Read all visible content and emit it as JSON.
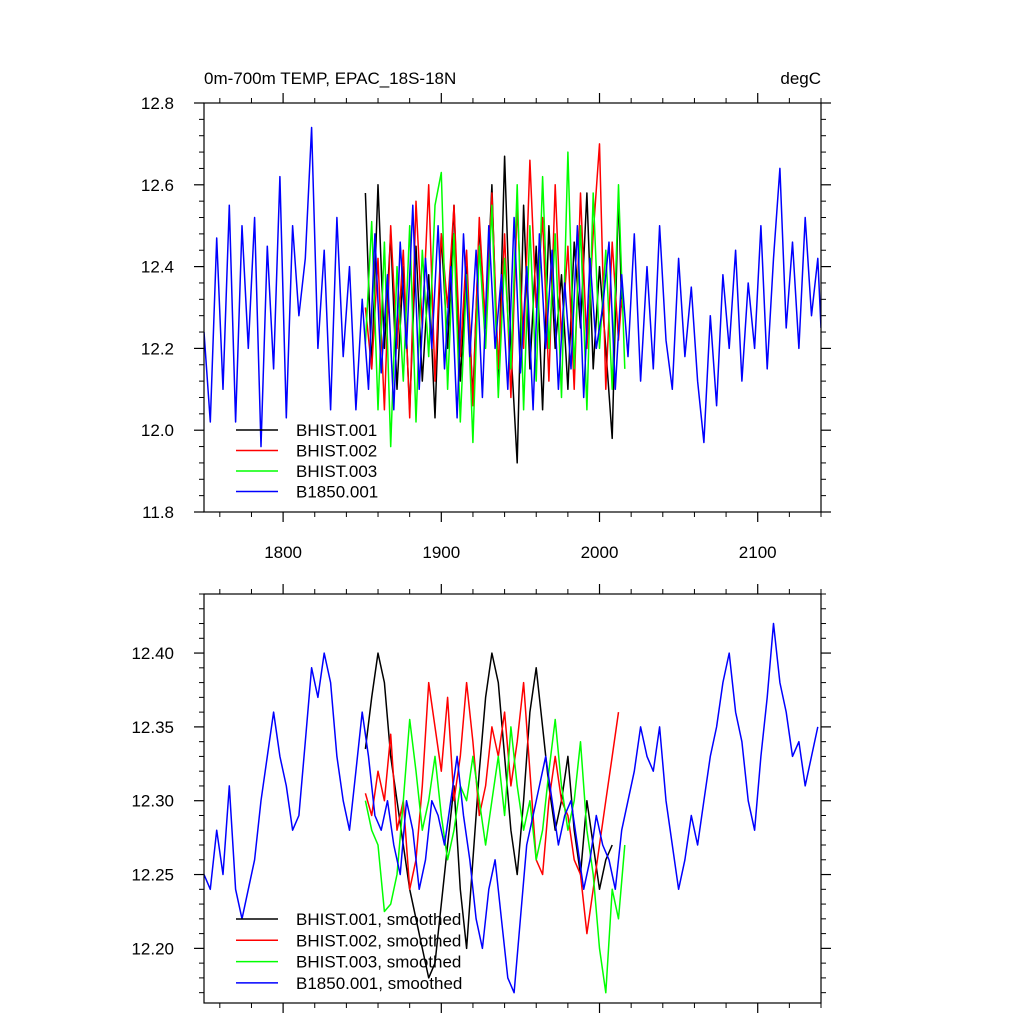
{
  "chart_data": [
    {
      "type": "line",
      "title": "0m-700m TEMP, EPAC_18S-18N",
      "units": "degC",
      "xlabel": "",
      "ylabel": "",
      "xlim": [
        1750,
        2140
      ],
      "ylim": [
        11.8,
        12.8
      ],
      "x_ticks": [
        1800,
        1900,
        2000,
        2100
      ],
      "x_tick_labels": [
        "1800",
        "1900",
        "2000",
        "2100"
      ],
      "y_ticks": [
        11.8,
        12.0,
        12.2,
        12.4,
        12.6,
        12.8
      ],
      "y_tick_labels": [
        "11.8",
        "12.0",
        "12.2",
        "12.4",
        "12.6",
        "12.8"
      ],
      "legend_position": "bottom-left",
      "series": [
        {
          "name": "BHIST.001",
          "color": "#000000",
          "x": [
            1852,
            1856,
            1860,
            1864,
            1868,
            1872,
            1876,
            1880,
            1884,
            1888,
            1892,
            1896,
            1900,
            1904,
            1908,
            1912,
            1916,
            1920,
            1924,
            1928,
            1932,
            1936,
            1940,
            1944,
            1948,
            1952,
            1956,
            1960,
            1964,
            1968,
            1972,
            1976,
            1980,
            1984,
            1988,
            1992,
            1996,
            2000,
            2004,
            2008,
            2012,
            2014
          ],
          "values": [
            12.58,
            12.15,
            12.6,
            12.2,
            12.48,
            12.1,
            12.4,
            12.05,
            12.45,
            12.12,
            12.38,
            12.03,
            12.48,
            12.2,
            12.55,
            12.12,
            12.4,
            12.08,
            12.5,
            12.25,
            12.6,
            12.1,
            12.67,
            12.2,
            11.92,
            12.55,
            12.15,
            12.45,
            12.05,
            12.5,
            12.2,
            12.38,
            12.1,
            12.46,
            12.25,
            12.58,
            12.15,
            12.4,
            12.2,
            11.98,
            12.58,
            12.3
          ]
        },
        {
          "name": "BHIST.002",
          "color": "#ff0000",
          "x": [
            1852,
            1856,
            1860,
            1864,
            1868,
            1872,
            1876,
            1880,
            1884,
            1888,
            1892,
            1896,
            1900,
            1904,
            1908,
            1912,
            1916,
            1920,
            1924,
            1928,
            1932,
            1936,
            1940,
            1944,
            1948,
            1952,
            1956,
            1960,
            1964,
            1968,
            1972,
            1976,
            1980,
            1984,
            1988,
            1992,
            1996,
            2000,
            2004,
            2008,
            2012,
            2014
          ],
          "values": [
            12.3,
            12.15,
            12.42,
            12.05,
            12.5,
            12.2,
            12.44,
            12.03,
            12.56,
            12.25,
            12.6,
            12.12,
            12.48,
            12.3,
            12.55,
            12.18,
            12.44,
            12.06,
            12.52,
            12.25,
            12.58,
            12.15,
            12.48,
            12.08,
            12.55,
            12.2,
            12.66,
            12.3,
            12.52,
            12.12,
            12.6,
            12.22,
            12.45,
            12.1,
            12.58,
            12.2,
            12.48,
            12.7,
            12.1,
            12.46,
            12.22,
            12.32
          ]
        },
        {
          "name": "BHIST.003",
          "color": "#00ff00",
          "x": [
            1852,
            1856,
            1860,
            1864,
            1868,
            1872,
            1876,
            1880,
            1884,
            1888,
            1892,
            1896,
            1900,
            1904,
            1908,
            1912,
            1916,
            1920,
            1924,
            1928,
            1932,
            1936,
            1940,
            1944,
            1948,
            1952,
            1956,
            1960,
            1964,
            1968,
            1972,
            1976,
            1980,
            1984,
            1988,
            1992,
            1996,
            2000,
            2004,
            2008,
            2012,
            2016
          ],
          "values": [
            12.21,
            12.51,
            12.05,
            12.46,
            11.96,
            12.4,
            12.12,
            12.5,
            12.02,
            12.44,
            12.18,
            12.55,
            12.63,
            12.1,
            12.48,
            12.02,
            12.38,
            11.97,
            12.45,
            12.2,
            12.55,
            12.08,
            12.42,
            12.15,
            12.6,
            12.05,
            12.5,
            12.12,
            12.62,
            12.2,
            12.48,
            12.08,
            12.68,
            12.15,
            12.5,
            12.05,
            12.58,
            12.2,
            12.44,
            12.1,
            12.6,
            12.15
          ]
        },
        {
          "name": "B1850.001",
          "color": "#0000ff",
          "x": [
            1750,
            1754,
            1758,
            1762,
            1766,
            1770,
            1774,
            1778,
            1782,
            1786,
            1790,
            1794,
            1798,
            1802,
            1806,
            1810,
            1814,
            1818,
            1822,
            1826,
            1830,
            1834,
            1838,
            1842,
            1846,
            1850,
            1854,
            1858,
            1862,
            1866,
            1870,
            1874,
            1878,
            1882,
            1886,
            1890,
            1894,
            1898,
            1902,
            1906,
            1910,
            1914,
            1918,
            1922,
            1926,
            1930,
            1934,
            1938,
            1942,
            1946,
            1950,
            1954,
            1958,
            1962,
            1966,
            1970,
            1974,
            1978,
            1982,
            1986,
            1990,
            1994,
            1998,
            2002,
            2006,
            2010,
            2014,
            2018,
            2022,
            2026,
            2030,
            2034,
            2038,
            2042,
            2046,
            2050,
            2054,
            2058,
            2062,
            2066,
            2070,
            2074,
            2078,
            2082,
            2086,
            2090,
            2094,
            2098,
            2102,
            2106,
            2110,
            2114,
            2118,
            2122,
            2126,
            2130,
            2134,
            2138,
            2140
          ],
          "values": [
            12.24,
            12.02,
            12.47,
            12.1,
            12.55,
            12.02,
            12.5,
            12.2,
            12.52,
            11.96,
            12.45,
            12.15,
            12.62,
            12.03,
            12.5,
            12.28,
            12.42,
            12.74,
            12.2,
            12.44,
            12.05,
            12.52,
            12.18,
            12.4,
            12.05,
            12.32,
            12.1,
            12.48,
            12.14,
            12.38,
            12.05,
            12.46,
            12.2,
            12.55,
            12.1,
            12.42,
            12.2,
            12.5,
            12.15,
            12.4,
            12.03,
            12.48,
            12.18,
            12.44,
            12.08,
            12.5,
            12.2,
            12.38,
            12.1,
            12.52,
            12.14,
            12.4,
            12.05,
            12.48,
            12.2,
            12.44,
            12.1,
            12.36,
            12.15,
            12.5,
            12.08,
            12.42,
            12.2,
            12.3,
            12.46,
            12.1,
            12.38,
            12.18,
            12.48,
            12.12,
            12.4,
            12.15,
            12.5,
            12.22,
            12.1,
            12.42,
            12.18,
            12.35,
            12.12,
            11.97,
            12.28,
            12.06,
            12.38,
            12.2,
            12.44,
            12.12,
            12.36,
            12.2,
            12.5,
            12.15,
            12.42,
            12.64,
            12.25,
            12.46,
            12.2,
            12.52,
            12.28,
            12.42,
            12.25
          ]
        }
      ]
    },
    {
      "type": "line",
      "title": "",
      "units": "",
      "xlabel": "",
      "ylabel": "",
      "xlim": [
        1750,
        2140
      ],
      "ylim": [
        12.163,
        12.44
      ],
      "x_ticks": [
        1800,
        1900,
        2000,
        2100
      ],
      "x_tick_labels": [],
      "y_ticks": [
        12.2,
        12.25,
        12.3,
        12.35,
        12.4
      ],
      "y_tick_labels": [
        "12.20",
        "12.25",
        "12.30",
        "12.35",
        "12.40"
      ],
      "legend_position": "bottom-left",
      "series": [
        {
          "name": "BHIST.001, smoothed",
          "color": "#000000",
          "x": [
            1852,
            1856,
            1860,
            1864,
            1868,
            1872,
            1876,
            1880,
            1884,
            1888,
            1892,
            1896,
            1900,
            1904,
            1908,
            1912,
            1916,
            1920,
            1924,
            1928,
            1932,
            1936,
            1940,
            1944,
            1948,
            1952,
            1956,
            1960,
            1964,
            1968,
            1972,
            1976,
            1980,
            1984,
            1988,
            1992,
            1996,
            2000,
            2004,
            2008
          ],
          "values": [
            12.335,
            12.37,
            12.4,
            12.38,
            12.33,
            12.3,
            12.27,
            12.24,
            12.22,
            12.2,
            12.18,
            12.19,
            12.23,
            12.27,
            12.31,
            12.24,
            12.2,
            12.26,
            12.32,
            12.37,
            12.4,
            12.38,
            12.33,
            12.28,
            12.25,
            12.3,
            12.36,
            12.39,
            12.35,
            12.31,
            12.28,
            12.3,
            12.33,
            12.28,
            12.25,
            12.3,
            12.27,
            12.24,
            12.26,
            12.27
          ]
        },
        {
          "name": "BHIST.002, smoothed",
          "color": "#ff0000",
          "x": [
            1852,
            1856,
            1860,
            1864,
            1868,
            1872,
            1876,
            1880,
            1884,
            1888,
            1892,
            1896,
            1900,
            1904,
            1908,
            1912,
            1916,
            1920,
            1924,
            1928,
            1932,
            1936,
            1940,
            1944,
            1948,
            1952,
            1956,
            1960,
            1964,
            1968,
            1972,
            1976,
            1980,
            1984,
            1988,
            1992,
            1996,
            2000,
            2004,
            2008,
            2012
          ],
          "values": [
            12.305,
            12.29,
            12.32,
            12.3,
            12.345,
            12.28,
            12.3,
            12.24,
            12.26,
            12.31,
            12.38,
            12.35,
            12.32,
            12.37,
            12.3,
            12.33,
            12.38,
            12.34,
            12.29,
            12.31,
            12.35,
            12.33,
            12.36,
            12.31,
            12.34,
            12.38,
            12.32,
            12.26,
            12.25,
            12.3,
            12.33,
            12.3,
            12.29,
            12.26,
            12.25,
            12.21,
            12.24,
            12.27,
            12.3,
            12.33,
            12.36
          ]
        },
        {
          "name": "BHIST.003, smoothed",
          "color": "#00ff00",
          "x": [
            1852,
            1856,
            1860,
            1864,
            1868,
            1872,
            1876,
            1880,
            1884,
            1888,
            1892,
            1896,
            1900,
            1904,
            1908,
            1912,
            1916,
            1920,
            1924,
            1928,
            1932,
            1936,
            1940,
            1944,
            1948,
            1952,
            1956,
            1960,
            1964,
            1968,
            1972,
            1976,
            1980,
            1984,
            1988,
            1992,
            1996,
            2000,
            2004,
            2008,
            2012,
            2016
          ],
          "values": [
            12.3,
            12.28,
            12.27,
            12.225,
            12.23,
            12.25,
            12.3,
            12.355,
            12.32,
            12.28,
            12.3,
            12.33,
            12.29,
            12.26,
            12.28,
            12.31,
            12.3,
            12.33,
            12.3,
            12.27,
            12.3,
            12.33,
            12.29,
            12.35,
            12.31,
            12.28,
            12.3,
            12.26,
            12.28,
            12.32,
            12.355,
            12.31,
            12.28,
            12.3,
            12.34,
            12.28,
            12.25,
            12.2,
            12.17,
            12.24,
            12.22,
            12.27
          ]
        },
        {
          "name": "B1850.001, smoothed",
          "color": "#0000ff",
          "x": [
            1750,
            1754,
            1758,
            1762,
            1766,
            1770,
            1774,
            1778,
            1782,
            1786,
            1790,
            1794,
            1798,
            1802,
            1806,
            1810,
            1814,
            1818,
            1822,
            1826,
            1830,
            1834,
            1838,
            1842,
            1846,
            1850,
            1854,
            1858,
            1862,
            1866,
            1870,
            1874,
            1878,
            1882,
            1886,
            1890,
            1894,
            1898,
            1902,
            1906,
            1910,
            1914,
            1918,
            1922,
            1926,
            1930,
            1934,
            1938,
            1942,
            1946,
            1950,
            1954,
            1958,
            1962,
            1966,
            1970,
            1974,
            1978,
            1982,
            1986,
            1990,
            1994,
            1998,
            2002,
            2006,
            2010,
            2014,
            2018,
            2022,
            2026,
            2030,
            2034,
            2038,
            2042,
            2046,
            2050,
            2054,
            2058,
            2062,
            2066,
            2070,
            2074,
            2078,
            2082,
            2086,
            2090,
            2094,
            2098,
            2102,
            2106,
            2110,
            2114,
            2118,
            2122,
            2126,
            2130,
            2134,
            2138
          ],
          "values": [
            12.25,
            12.24,
            12.28,
            12.25,
            12.31,
            12.24,
            12.22,
            12.24,
            12.26,
            12.3,
            12.33,
            12.36,
            12.33,
            12.31,
            12.28,
            12.29,
            12.34,
            12.39,
            12.37,
            12.4,
            12.38,
            12.33,
            12.3,
            12.28,
            12.32,
            12.36,
            12.33,
            12.29,
            12.28,
            12.3,
            12.27,
            12.25,
            12.3,
            12.28,
            12.24,
            12.26,
            12.3,
            12.29,
            12.27,
            12.3,
            12.33,
            12.29,
            12.26,
            12.22,
            12.2,
            12.24,
            12.26,
            12.22,
            12.18,
            12.17,
            12.22,
            12.27,
            12.29,
            12.31,
            12.33,
            12.3,
            12.27,
            12.29,
            12.3,
            12.27,
            12.24,
            12.26,
            12.29,
            12.27,
            12.26,
            12.24,
            12.28,
            12.3,
            12.32,
            12.35,
            12.33,
            12.32,
            12.35,
            12.3,
            12.27,
            12.24,
            12.26,
            12.29,
            12.27,
            12.3,
            12.33,
            12.35,
            12.38,
            12.4,
            12.36,
            12.34,
            12.3,
            12.28,
            12.33,
            12.37,
            12.42,
            12.38,
            12.36,
            12.33,
            12.34,
            12.31,
            12.33,
            12.35
          ]
        }
      ]
    }
  ]
}
